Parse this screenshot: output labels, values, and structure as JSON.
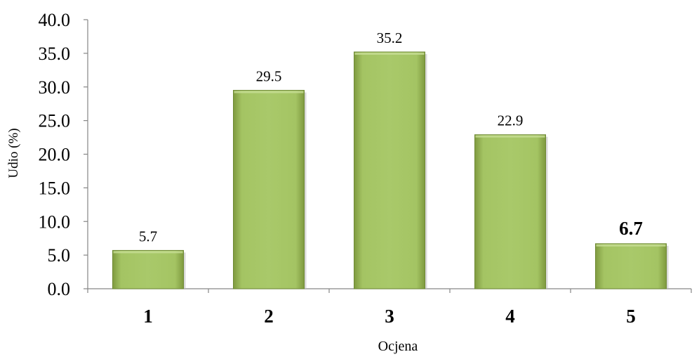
{
  "chart_data": {
    "type": "bar",
    "title": "",
    "xlabel": "Ocjena",
    "ylabel": "Udio (%)",
    "categories": [
      "1",
      "2",
      "3",
      "4",
      "5"
    ],
    "values": [
      5.7,
      29.5,
      35.2,
      22.9,
      6.7
    ],
    "data_labels": [
      "5.7",
      "29.5",
      "35.2",
      "22.9",
      "6.7"
    ],
    "y_ticks": [
      "0.0",
      "5.0",
      "10.0",
      "15.0",
      "20.0",
      "25.0",
      "30.0",
      "35.0",
      "40.0"
    ],
    "ylim": [
      0,
      40
    ],
    "grid": false,
    "legend": "none",
    "bar_color": "#9bbb59",
    "bold_data_label_index": 4
  }
}
